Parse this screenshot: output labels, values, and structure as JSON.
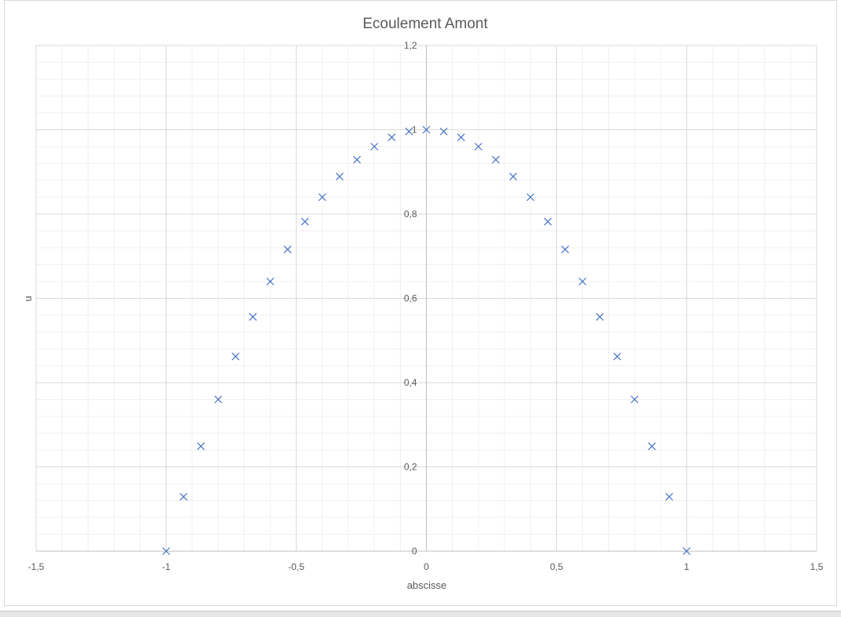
{
  "chart_data": {
    "type": "scatter",
    "title": "Ecoulement Amont",
    "xlabel": "abscisse",
    "ylabel": "u",
    "xlim": [
      -1.5,
      1.5
    ],
    "ylim": [
      0,
      1.2
    ],
    "x_ticks": [
      -1.5,
      -1,
      -0.5,
      0,
      0.5,
      1,
      1.5
    ],
    "x_tick_labels": [
      "-1,5",
      "-1",
      "-0,5",
      "0",
      "0,5",
      "1",
      "1,5"
    ],
    "y_ticks": [
      0,
      0.2,
      0.4,
      0.6,
      0.8,
      1,
      1.2
    ],
    "y_tick_labels": [
      "0",
      "0,2",
      "0,4",
      "0,6",
      "0,8",
      "1",
      "1,2"
    ],
    "grid": true,
    "minor_grid": true,
    "marker": "x",
    "series": [
      {
        "color": "#4472C4",
        "x": [
          -1,
          -0.9333,
          -0.8667,
          -0.8,
          -0.7333,
          -0.6667,
          -0.6,
          -0.5333,
          -0.4667,
          -0.4,
          -0.3333,
          -0.2667,
          -0.2,
          -0.1333,
          -0.0667,
          0,
          0.0667,
          0.1333,
          0.2,
          0.2667,
          0.3333,
          0.4,
          0.4667,
          0.5333,
          0.6,
          0.6667,
          0.7333,
          0.8,
          0.8667,
          0.9333,
          1
        ],
        "y": [
          0,
          0.129,
          0.249,
          0.36,
          0.462,
          0.556,
          0.64,
          0.716,
          0.782,
          0.84,
          0.889,
          0.929,
          0.96,
          0.982,
          0.996,
          1,
          0.996,
          0.982,
          0.96,
          0.929,
          0.889,
          0.84,
          0.782,
          0.716,
          0.64,
          0.556,
          0.462,
          0.36,
          0.249,
          0.129,
          0
        ]
      }
    ]
  }
}
